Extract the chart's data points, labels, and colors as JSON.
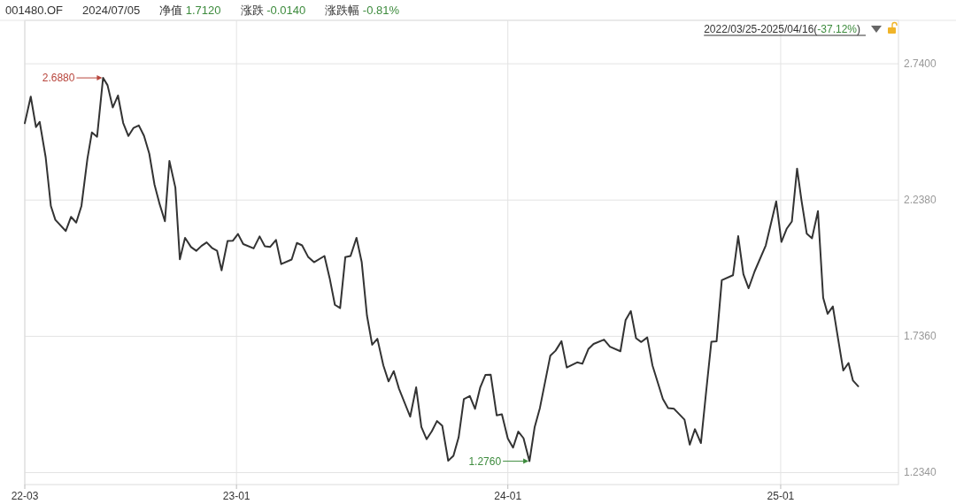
{
  "chart_data": {
    "type": "line",
    "title": "001480.OF",
    "subtitle": "2024/07/05",
    "annotations": [
      "净值 1.7120",
      "涨跌 -0.0140",
      "涨跌幅 -0.81%",
      "2022/03/25-2025/04/16(-37.12%)",
      {
        "text": "2.6880",
        "x": "2022-07-08",
        "y": 2.688
      },
      {
        "text": "1.2760",
        "x": "2024-01-31",
        "y": 1.276
      }
    ],
    "x": [
      "2022-03-25",
      "2022-04-02",
      "2022-04-09",
      "2022-04-14",
      "2022-04-22",
      "2022-04-29",
      "2022-05-05",
      "2022-05-19",
      "2022-05-26",
      "2022-06-02",
      "2022-06-09",
      "2022-06-17",
      "2022-06-23",
      "2022-06-30",
      "2022-07-08",
      "2022-07-14",
      "2022-07-21",
      "2022-07-28",
      "2022-08-04",
      "2022-08-11",
      "2022-08-18",
      "2022-08-25",
      "2022-09-01",
      "2022-09-08",
      "2022-09-15",
      "2022-09-22",
      "2022-09-29",
      "2022-10-05",
      "2022-10-13",
      "2022-10-19",
      "2022-10-26",
      "2022-11-03",
      "2022-11-10",
      "2022-11-17",
      "2022-11-24",
      "2022-12-01",
      "2022-12-08",
      "2022-12-14",
      "2022-12-22",
      "2022-12-29",
      "2023-01-05",
      "2023-01-12",
      "2023-01-26",
      "2023-02-03",
      "2023-02-10",
      "2023-02-17",
      "2023-02-25",
      "2023-03-04",
      "2023-03-18",
      "2023-03-25",
      "2023-04-01",
      "2023-04-09",
      "2023-04-17",
      "2023-05-01",
      "2023-05-08",
      "2023-05-15",
      "2023-05-22",
      "2023-05-29",
      "2023-06-05",
      "2023-06-13",
      "2023-06-20",
      "2023-06-27",
      "2023-07-04",
      "2023-07-11",
      "2023-07-19",
      "2023-07-26",
      "2023-08-02",
      "2023-08-09",
      "2023-08-24",
      "2023-09-01",
      "2023-09-08",
      "2023-09-15",
      "2023-09-22",
      "2023-09-29",
      "2023-10-06",
      "2023-10-14",
      "2023-10-21",
      "2023-10-28",
      "2023-11-04",
      "2023-11-12",
      "2023-11-19",
      "2023-11-26",
      "2023-12-03",
      "2023-12-10",
      "2023-12-18",
      "2023-12-25",
      "2024-01-02",
      "2024-01-09",
      "2024-01-16",
      "2024-01-23",
      "2024-01-31",
      "2024-02-07",
      "2024-02-14",
      "2024-02-28",
      "2024-03-06",
      "2024-03-14",
      "2024-03-21",
      "2024-04-04",
      "2024-04-11",
      "2024-04-19",
      "2024-04-26",
      "2024-05-10",
      "2024-05-18",
      "2024-06-01",
      "2024-06-08",
      "2024-06-15",
      "2024-06-22",
      "2024-06-29",
      "2024-07-07",
      "2024-07-14",
      "2024-07-28",
      "2024-08-04",
      "2024-08-12",
      "2024-08-26",
      "2024-09-02",
      "2024-09-09",
      "2024-09-17",
      "2024-09-24",
      "2024-10-01",
      "2024-10-08",
      "2024-10-15",
      "2024-10-30",
      "2024-11-06",
      "2024-11-13",
      "2024-11-20",
      "2024-11-28",
      "2024-12-13",
      "2024-12-27",
      "2025-01-03",
      "2025-01-10",
      "2025-01-17",
      "2025-01-24",
      "2025-01-30",
      "2025-02-06",
      "2025-02-13",
      "2025-02-21",
      "2025-02-28",
      "2025-03-06",
      "2025-03-13",
      "2025-03-20",
      "2025-03-27",
      "2025-04-03",
      "2025-04-09",
      "2025-04-16"
    ],
    "series": [
      {
        "color": "#333333",
        "values": [
          2.521,
          2.619,
          2.507,
          2.526,
          2.396,
          2.216,
          2.165,
          2.124,
          2.176,
          2.155,
          2.216,
          2.39,
          2.487,
          2.471,
          2.688,
          2.661,
          2.579,
          2.623,
          2.522,
          2.474,
          2.504,
          2.513,
          2.474,
          2.409,
          2.295,
          2.222,
          2.16,
          2.382,
          2.284,
          2.02,
          2.099,
          2.065,
          2.051,
          2.069,
          2.082,
          2.062,
          2.051,
          1.979,
          2.087,
          2.088,
          2.113,
          2.076,
          2.06,
          2.104,
          2.068,
          2.065,
          2.091,
          2.002,
          2.019,
          2.08,
          2.071,
          2.029,
          2.009,
          2.032,
          1.95,
          1.852,
          1.84,
          2.028,
          2.032,
          2.099,
          2.009,
          1.813,
          1.705,
          1.727,
          1.629,
          1.57,
          1.608,
          1.543,
          1.44,
          1.548,
          1.402,
          1.357,
          1.386,
          1.424,
          1.407,
          1.278,
          1.296,
          1.364,
          1.505,
          1.516,
          1.469,
          1.548,
          1.594,
          1.595,
          1.445,
          1.449,
          1.359,
          1.326,
          1.385,
          1.361,
          1.276,
          1.402,
          1.472,
          1.665,
          1.683,
          1.718,
          1.621,
          1.64,
          1.635,
          1.689,
          1.708,
          1.724,
          1.698,
          1.681,
          1.796,
          1.829,
          1.729,
          1.715,
          1.732,
          1.629,
          1.505,
          1.472,
          1.469,
          1.429,
          1.337,
          1.394,
          1.343,
          1.532,
          1.716,
          1.718,
          1.943,
          1.961,
          2.105,
          1.965,
          1.913,
          1.975,
          2.071,
          2.233,
          2.084,
          2.132,
          2.159,
          2.354,
          2.235,
          2.114,
          2.097,
          2.197,
          1.878,
          1.819,
          1.846,
          1.727,
          1.61,
          1.638,
          1.573,
          1.552
        ]
      }
    ],
    "xlim": [
      "2022-03-25",
      "2025-06-09"
    ],
    "xticks": [
      {
        "value": "2022-03-25",
        "label": "22-03"
      },
      {
        "value": "2023-01-03",
        "label": "23-01"
      },
      {
        "value": "2024-01-02",
        "label": "24-01"
      },
      {
        "value": "2025-01-02",
        "label": "25-01"
      }
    ],
    "ylim": [
      1.19,
      2.9
    ],
    "yticks": [
      {
        "value": 2.74,
        "label": "2.7400"
      },
      {
        "value": 2.238,
        "label": "2.2380"
      },
      {
        "value": 1.736,
        "label": "1.7360"
      },
      {
        "value": 1.234,
        "label": "1.2340"
      }
    ],
    "grid": true,
    "line_style": "solid"
  }
}
